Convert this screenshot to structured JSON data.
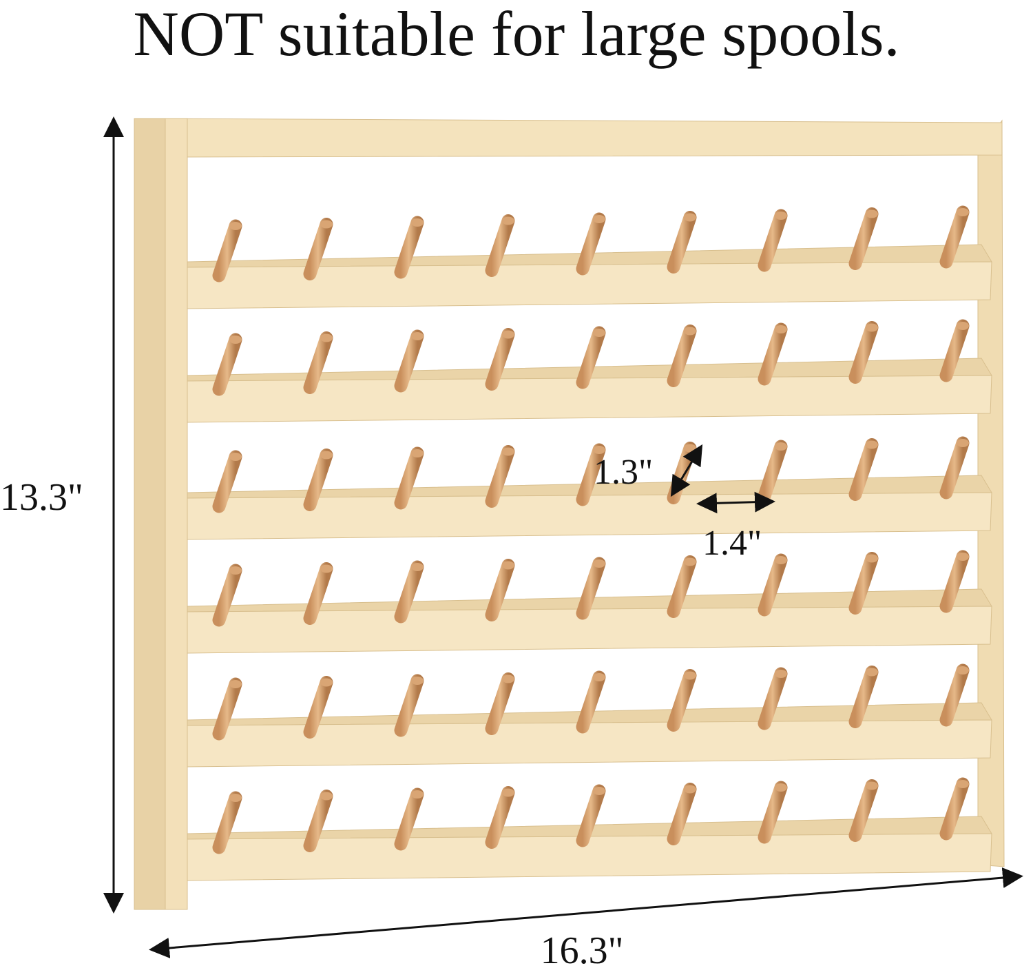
{
  "header": {
    "title": "NOT suitable for large spools."
  },
  "dimensions": {
    "height": "13.3\"",
    "width": "16.3\"",
    "peg_length": "1.3\"",
    "peg_spacing": "1.4\""
  }
}
